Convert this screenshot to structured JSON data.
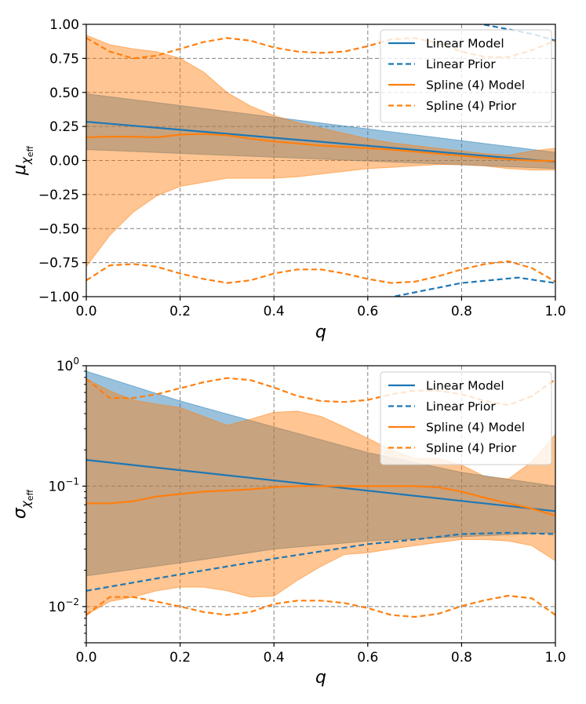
{
  "chart_data": [
    {
      "type": "line",
      "title": "",
      "xlabel": "q",
      "ylabel": "μ",
      "ylabel_subscript": "χ",
      "ylabel_subsubscript": "eff",
      "xlim": [
        0.0,
        1.0
      ],
      "ylim": [
        -1.0,
        1.0
      ],
      "yscale": "linear",
      "grid": true,
      "legend_position": "top-right",
      "xticks": [
        0.0,
        0.2,
        0.4,
        0.6,
        0.8,
        1.0
      ],
      "xtick_labels": [
        "0.0",
        "0.2",
        "0.4",
        "0.6",
        "0.8",
        "1.0"
      ],
      "yticks": [
        -1.0,
        -0.75,
        -0.5,
        -0.25,
        0.0,
        0.25,
        0.5,
        0.75,
        1.0
      ],
      "ytick_labels": [
        "−1.00",
        "−0.75",
        "−0.50",
        "−0.25",
        "0.00",
        "0.25",
        "0.50",
        "0.75",
        "1.00"
      ],
      "series": [
        {
          "name": "Linear Model",
          "style": "solid",
          "color": "#1f77b4",
          "x": [
            0.0,
            1.0
          ],
          "y": [
            0.285,
            -0.01
          ]
        },
        {
          "name": "Linear Prior",
          "style": "dashed",
          "color": "#1f77b4",
          "clip": true,
          "x": [
            0.64,
            0.8,
            0.92,
            1.0
          ],
          "y": [
            -1.01,
            -0.9,
            -0.86,
            -0.9
          ],
          "x2": [
            0.83,
            0.95,
            1.0
          ],
          "y2": [
            1.01,
            0.93,
            0.88
          ]
        },
        {
          "name": "Spline (4) Model",
          "style": "solid",
          "color": "#ff7f0e",
          "x": [
            0.0,
            0.05,
            0.1,
            0.15,
            0.2,
            0.25,
            0.3,
            0.35,
            0.4,
            0.45,
            0.5,
            0.55,
            0.6,
            0.65,
            0.7,
            0.75,
            0.8,
            0.85,
            0.9,
            0.95,
            1.0
          ],
          "y": [
            0.17,
            0.175,
            0.175,
            0.17,
            0.19,
            0.195,
            0.185,
            0.16,
            0.14,
            0.125,
            0.11,
            0.1,
            0.09,
            0.08,
            0.065,
            0.05,
            0.035,
            0.02,
            0.01,
            0.0,
            -0.005
          ]
        },
        {
          "name": "Spline (4) Prior",
          "style": "dashed",
          "color": "#ff7f0e",
          "x": [
            0.0,
            0.05,
            0.1,
            0.15,
            0.2,
            0.25,
            0.3,
            0.35,
            0.4,
            0.45,
            0.5,
            0.55,
            0.6,
            0.65,
            0.7,
            0.75,
            0.8,
            0.85,
            0.9,
            0.95,
            1.0
          ],
          "y": [
            0.9,
            0.8,
            0.75,
            0.77,
            0.82,
            0.87,
            0.9,
            0.88,
            0.83,
            0.8,
            0.79,
            0.8,
            0.84,
            0.89,
            0.9,
            0.86,
            0.8,
            0.76,
            0.76,
            0.81,
            0.88
          ],
          "y_lower": [
            -0.88,
            -0.77,
            -0.76,
            -0.78,
            -0.83,
            -0.87,
            -0.9,
            -0.88,
            -0.83,
            -0.8,
            -0.8,
            -0.83,
            -0.87,
            -0.9,
            -0.89,
            -0.85,
            -0.8,
            -0.76,
            -0.74,
            -0.79,
            -0.89
          ]
        }
      ],
      "bands": [
        {
          "name": "Linear Model band",
          "color": "#1f77b4",
          "opacity": 0.45,
          "x": [
            0.0,
            1.0
          ],
          "upper": [
            0.49,
            0.06
          ],
          "lower": [
            0.08,
            -0.06
          ]
        },
        {
          "name": "Spline (4) Model band",
          "color": "#ff7f0e",
          "opacity": 0.45,
          "x": [
            0.0,
            0.05,
            0.1,
            0.15,
            0.2,
            0.25,
            0.3,
            0.35,
            0.4,
            0.45,
            0.5,
            0.55,
            0.6,
            0.65,
            0.7,
            0.75,
            0.8,
            0.85,
            0.9,
            0.95,
            1.0
          ],
          "upper": [
            0.92,
            0.85,
            0.82,
            0.8,
            0.75,
            0.65,
            0.5,
            0.4,
            0.33,
            0.28,
            0.24,
            0.2,
            0.16,
            0.13,
            0.11,
            0.09,
            0.07,
            0.05,
            0.04,
            0.07,
            0.09
          ],
          "lower": [
            -0.78,
            -0.55,
            -0.38,
            -0.26,
            -0.19,
            -0.16,
            -0.13,
            -0.13,
            -0.13,
            -0.12,
            -0.1,
            -0.08,
            -0.06,
            -0.05,
            -0.04,
            -0.03,
            -0.03,
            -0.04,
            -0.06,
            -0.07,
            -0.07
          ]
        }
      ]
    },
    {
      "type": "line",
      "title": "",
      "xlabel": "q",
      "ylabel": "σ",
      "ylabel_subscript": "χ",
      "ylabel_subsubscript": "eff",
      "xlim": [
        0.0,
        1.0
      ],
      "ylim": [
        0.005,
        1.0
      ],
      "yscale": "log",
      "grid": true,
      "legend_position": "top-right",
      "xticks": [
        0.0,
        0.2,
        0.4,
        0.6,
        0.8,
        1.0
      ],
      "xtick_labels": [
        "0.0",
        "0.2",
        "0.4",
        "0.6",
        "0.8",
        "1.0"
      ],
      "yticks": [
        0.01,
        0.1,
        1.0
      ],
      "ytick_labels": [
        {
          "base": "10",
          "exp": "−2"
        },
        {
          "base": "10",
          "exp": "−1"
        },
        {
          "base": "10",
          "exp": "0"
        }
      ],
      "series": [
        {
          "name": "Linear Model",
          "style": "solid",
          "color": "#1f77b4",
          "x": [
            0.0,
            1.0
          ],
          "y": [
            0.165,
            0.062
          ]
        },
        {
          "name": "Linear Prior",
          "style": "dashed",
          "color": "#1f77b4",
          "x": [
            0.0,
            0.2,
            0.4,
            0.6,
            0.7,
            0.8,
            0.9,
            1.0
          ],
          "y": [
            0.0135,
            0.0185,
            0.025,
            0.033,
            0.036,
            0.04,
            0.041,
            0.04
          ]
        },
        {
          "name": "Spline (4) Model",
          "style": "solid",
          "color": "#ff7f0e",
          "x": [
            0.0,
            0.05,
            0.1,
            0.15,
            0.2,
            0.25,
            0.3,
            0.35,
            0.4,
            0.45,
            0.5,
            0.55,
            0.6,
            0.65,
            0.7,
            0.75,
            0.8,
            0.85,
            0.9,
            0.95,
            1.0
          ],
          "y": [
            0.072,
            0.072,
            0.075,
            0.082,
            0.086,
            0.09,
            0.092,
            0.094,
            0.098,
            0.1,
            0.1,
            0.1,
            0.1,
            0.1,
            0.1,
            0.098,
            0.09,
            0.08,
            0.072,
            0.065,
            0.057
          ]
        },
        {
          "name": "Spline (4) Prior",
          "style": "dashed",
          "color": "#ff7f0e",
          "x": [
            0.0,
            0.05,
            0.1,
            0.15,
            0.2,
            0.25,
            0.3,
            0.35,
            0.4,
            0.45,
            0.5,
            0.55,
            0.6,
            0.65,
            0.7,
            0.75,
            0.8,
            0.85,
            0.9,
            0.95,
            1.0
          ],
          "y": [
            0.78,
            0.54,
            0.54,
            0.58,
            0.65,
            0.73,
            0.79,
            0.76,
            0.66,
            0.56,
            0.51,
            0.5,
            0.52,
            0.58,
            0.62,
            0.62,
            0.58,
            0.51,
            0.47,
            0.56,
            0.77
          ],
          "y_lower": [
            0.0085,
            0.012,
            0.012,
            0.011,
            0.01,
            0.009,
            0.0085,
            0.009,
            0.0105,
            0.0112,
            0.0112,
            0.0107,
            0.0097,
            0.0085,
            0.0082,
            0.0087,
            0.0101,
            0.0113,
            0.0123,
            0.0117,
            0.0085
          ]
        }
      ],
      "bands": [
        {
          "name": "Linear Model band",
          "color": "#1f77b4",
          "opacity": 0.45,
          "x": [
            0.0,
            0.2,
            0.4,
            0.6,
            0.8,
            1.0
          ],
          "upper": [
            0.9,
            0.51,
            0.31,
            0.19,
            0.13,
            0.1
          ],
          "lower": [
            0.018,
            0.023,
            0.03,
            0.035,
            0.038,
            0.041
          ]
        },
        {
          "name": "Spline (4) Model band",
          "color": "#ff7f0e",
          "opacity": 0.45,
          "x": [
            0.0,
            0.05,
            0.1,
            0.15,
            0.2,
            0.25,
            0.3,
            0.35,
            0.4,
            0.45,
            0.5,
            0.55,
            0.6,
            0.65,
            0.7,
            0.75,
            0.8,
            0.85,
            0.9,
            0.95,
            1.0
          ],
          "upper": [
            0.78,
            0.62,
            0.52,
            0.48,
            0.45,
            0.38,
            0.32,
            0.36,
            0.41,
            0.42,
            0.38,
            0.31,
            0.25,
            0.2,
            0.17,
            0.17,
            0.15,
            0.12,
            0.115,
            0.16,
            0.27
          ],
          "lower": [
            0.0085,
            0.011,
            0.012,
            0.0135,
            0.0145,
            0.0145,
            0.0135,
            0.012,
            0.0122,
            0.0165,
            0.0215,
            0.027,
            0.028,
            0.03,
            0.032,
            0.034,
            0.036,
            0.036,
            0.035,
            0.032,
            0.024
          ]
        }
      ]
    }
  ]
}
